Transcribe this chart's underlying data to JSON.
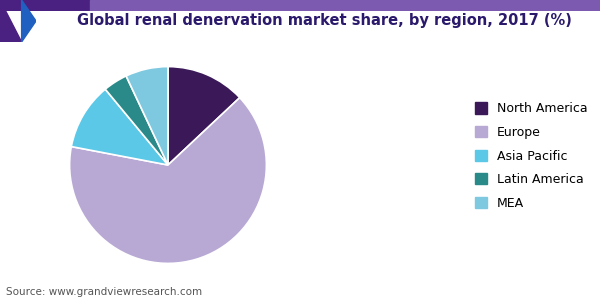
{
  "title": "Global renal denervation market share, by region, 2017 (%)",
  "source": "Source: www.grandviewresearch.com",
  "labels": [
    "North America",
    "Europe",
    "Asia Pacific",
    "Latin America",
    "MEA"
  ],
  "values": [
    13,
    65,
    11,
    4,
    7
  ],
  "colors": [
    "#3b1858",
    "#b8a8d4",
    "#5bc8e8",
    "#2a8a8a",
    "#7ec8e0"
  ],
  "background_color": "#ffffff",
  "title_fontsize": 10.5,
  "title_color": "#2b1a6b",
  "legend_fontsize": 9,
  "source_fontsize": 7.5,
  "startangle": 90
}
